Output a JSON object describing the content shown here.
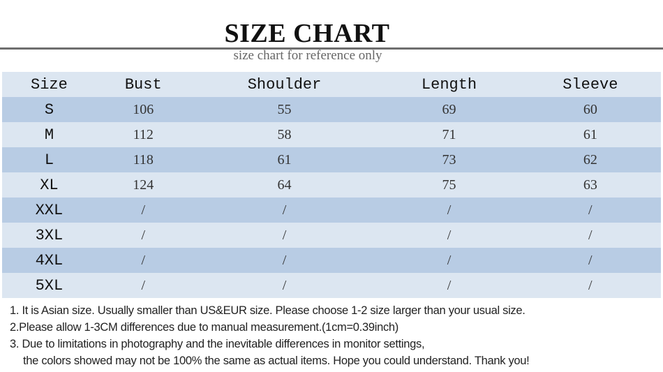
{
  "header": {
    "title": "SIZE CHART",
    "subtitle": "size chart for reference only"
  },
  "table": {
    "columns": [
      "Size",
      "Bust",
      "Shoulder",
      "Length",
      "Sleeve"
    ],
    "rows": [
      [
        "S",
        "106",
        "55",
        "69",
        "60"
      ],
      [
        "M",
        "112",
        "58",
        "71",
        "61"
      ],
      [
        "L",
        "118",
        "61",
        "73",
        "62"
      ],
      [
        "XL",
        "124",
        "64",
        "75",
        "63"
      ],
      [
        "XXL",
        "/",
        "/",
        "/",
        "/"
      ],
      [
        "3XL",
        "/",
        "/",
        "/",
        "/"
      ],
      [
        "4XL",
        "/",
        "/",
        "/",
        "/"
      ],
      [
        "5XL",
        "/",
        "/",
        "/",
        "/"
      ]
    ]
  },
  "notes": [
    "1. It is Asian size.  Usually smaller than US&EUR size. Please choose 1-2 size larger than your usual size.",
    "2.Please allow 1-3CM differences due to manual measurement.(1cm=0.39inch)",
    "3. Due to limitations in photography and the inevitable differences in monitor settings,",
    "the colors showed may not be 100% the same as actual items. Hope you could understand. Thank you!"
  ],
  "colors": {
    "header_row": "#dce6f1",
    "dark_row": "#b8cce4",
    "light_row": "#dce6f1",
    "rule": "#6e6e6e"
  }
}
